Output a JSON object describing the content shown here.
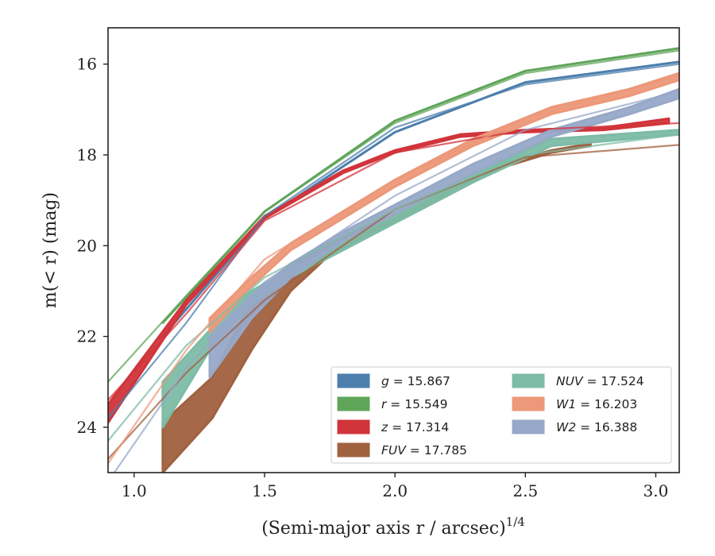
{
  "chart_data": {
    "type": "line",
    "xlabel": "(Semi-major axis r / arcsec)",
    "xlabel_exponent": "1/4",
    "ylabel": "m(< r) (mag)",
    "xlim": [
      0.9,
      3.09
    ],
    "ylim": [
      25.0,
      15.2
    ],
    "y_inverted": true,
    "x_ticks": [
      "1.0",
      "1.5",
      "2.0",
      "2.5",
      "3.0"
    ],
    "y_ticks": [
      "16",
      "18",
      "20",
      "22",
      "24"
    ],
    "grid": false,
    "legend_position": "lower-right",
    "series": [
      {
        "name": "g = 15.867",
        "band": "g",
        "value": "15.867",
        "color": "#4c7fac",
        "x": [
          1.11,
          1.5,
          2.0,
          2.5,
          3.09
        ],
        "y_lo": [
          22.0,
          19.4,
          17.5,
          16.4,
          15.95
        ],
        "y_hi": [
          22.0,
          19.4,
          17.5,
          16.4,
          15.95
        ],
        "model": {
          "x": [
            0.9,
            1.2,
            1.5,
            2.0,
            2.5,
            3.09
          ],
          "y": [
            23.8,
            21.7,
            19.35,
            17.4,
            16.45,
            16.0
          ]
        }
      },
      {
        "name": "r = 15.549",
        "band": "r",
        "value": "15.549",
        "color": "#5fa55a",
        "x": [
          1.11,
          1.5,
          2.0,
          2.5,
          3.09
        ],
        "y_lo": [
          21.7,
          19.25,
          17.25,
          16.15,
          15.65
        ],
        "y_hi": [
          21.7,
          19.25,
          17.25,
          16.15,
          15.65
        ],
        "model": {
          "x": [
            0.9,
            1.2,
            1.5,
            2.0,
            2.5,
            3.09
          ],
          "y": [
            23.0,
            21.1,
            19.25,
            17.3,
            16.2,
            15.7
          ]
        }
      },
      {
        "name": "z = 17.314",
        "band": "z",
        "value": "17.314",
        "color": "#d1343b",
        "x": [
          0.9,
          1.2,
          1.5,
          1.8,
          2.0,
          2.25,
          2.5,
          2.8,
          3.05
        ],
        "y_lo": [
          23.9,
          21.3,
          19.4,
          18.4,
          17.95,
          17.6,
          17.5,
          17.45,
          17.3
        ],
        "y_hi": [
          23.5,
          21.2,
          19.35,
          18.35,
          17.9,
          17.55,
          17.45,
          17.4,
          17.2
        ],
        "model": {
          "x": [
            0.9,
            1.2,
            1.5,
            2.0,
            2.5,
            3.09
          ],
          "y": [
            23.4,
            21.5,
            19.45,
            17.95,
            17.45,
            17.3
          ]
        }
      },
      {
        "name": "FUV = 17.785",
        "band": "FUV",
        "value": "17.785",
        "color": "#a0613f",
        "x": [
          1.11,
          1.3,
          1.45,
          1.6,
          1.75,
          1.9,
          2.05,
          2.2,
          2.4,
          2.6,
          2.75
        ],
        "y_lo": [
          25.0,
          23.8,
          22.3,
          21.0,
          20.2,
          19.75,
          19.35,
          18.9,
          18.3,
          17.95,
          17.8
        ],
        "y_hi": [
          23.9,
          22.9,
          21.2,
          20.4,
          19.95,
          19.55,
          19.2,
          18.75,
          18.2,
          17.9,
          17.75
        ],
        "model": {
          "x": [
            0.9,
            1.2,
            1.5,
            2.0,
            2.5,
            3.09
          ],
          "y": [
            24.7,
            22.8,
            21.2,
            19.2,
            18.05,
            17.78
          ]
        }
      },
      {
        "name": "NUV = 17.524",
        "band": "NUV",
        "value": "17.524",
        "color": "#7dbca6",
        "x": [
          1.11,
          1.3,
          1.45,
          1.6,
          1.8,
          2.0,
          2.3,
          2.6,
          3.09
        ],
        "y_lo": [
          24.0,
          22.2,
          21.3,
          20.7,
          20.1,
          19.5,
          18.6,
          17.8,
          17.55
        ],
        "y_hi": [
          23.0,
          21.8,
          21.0,
          20.5,
          19.9,
          19.35,
          18.45,
          17.65,
          17.45
        ],
        "model": {
          "x": [
            0.9,
            1.2,
            1.5,
            2.0,
            2.5,
            3.09
          ],
          "y": [
            24.3,
            22.2,
            20.7,
            19.2,
            18.0,
            17.55
          ]
        }
      },
      {
        "name": "W1 = 16.203",
        "band": "W1",
        "value": "16.203",
        "color": "#ec9879",
        "x": [
          1.29,
          1.45,
          1.6,
          1.8,
          2.0,
          2.3,
          2.6,
          2.9,
          3.09
        ],
        "y_lo": [
          21.9,
          20.9,
          20.1,
          19.4,
          18.7,
          17.8,
          17.1,
          16.7,
          16.35
        ],
        "y_hi": [
          21.6,
          20.7,
          19.95,
          19.25,
          18.55,
          17.65,
          16.95,
          16.55,
          16.2
        ],
        "model": {
          "x": [
            0.9,
            1.2,
            1.5,
            2.0,
            2.5,
            3.09
          ],
          "y": [
            24.8,
            22.3,
            20.3,
            18.55,
            17.2,
            16.25
          ]
        }
      },
      {
        "name": "W2 = 16.388",
        "band": "W2",
        "value": "16.388",
        "color": "#97a8c8",
        "x": [
          1.29,
          1.45,
          1.6,
          1.8,
          2.0,
          2.3,
          2.6,
          2.9,
          3.09
        ],
        "y_lo": [
          22.9,
          21.6,
          20.7,
          19.9,
          19.3,
          18.4,
          17.6,
          17.1,
          16.75
        ],
        "y_hi": [
          22.0,
          21.1,
          20.4,
          19.7,
          19.1,
          18.2,
          17.45,
          16.95,
          16.55
        ],
        "model": {
          "x": [
            0.9,
            1.2,
            1.5,
            2.0,
            2.5,
            3.09
          ],
          "y": [
            25.2,
            22.7,
            20.8,
            18.9,
            17.45,
            16.6
          ]
        }
      }
    ]
  }
}
